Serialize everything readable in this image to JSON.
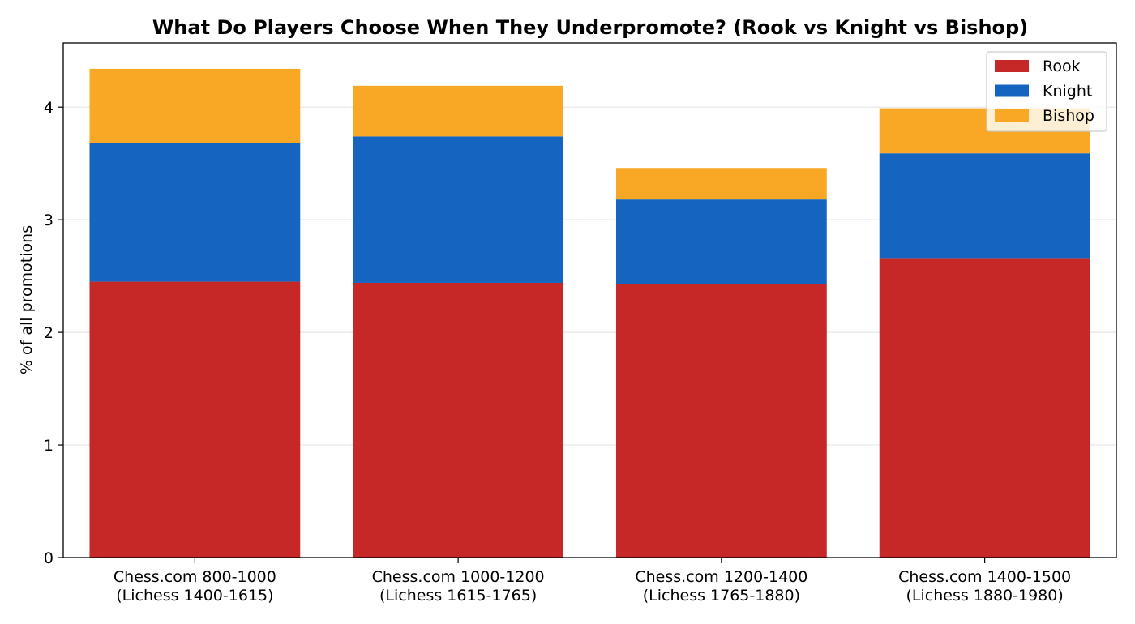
{
  "chart_data": {
    "type": "bar",
    "stacked": true,
    "title": "What Do Players Choose When They Underpromote? (Rook vs Knight vs Bishop)",
    "xlabel": "",
    "ylabel": "% of all promotions",
    "ylim": [
      0,
      4.57
    ],
    "yticks": [
      0,
      1,
      2,
      3,
      4
    ],
    "grid": "y",
    "legend": "top-right",
    "categories": [
      [
        "Chess.com 800-1000",
        "(Lichess 1400-1615)"
      ],
      [
        "Chess.com 1000-1200",
        "(Lichess 1615-1765)"
      ],
      [
        "Chess.com 1200-1400",
        "(Lichess 1765-1880)"
      ],
      [
        "Chess.com 1400-1500",
        "(Lichess 1880-1980)"
      ]
    ],
    "series": [
      {
        "name": "Rook",
        "color": "#c62828",
        "values": [
          2.45,
          2.44,
          2.43,
          2.66
        ]
      },
      {
        "name": "Knight",
        "color": "#1565c0",
        "values": [
          1.23,
          1.3,
          0.75,
          0.93
        ]
      },
      {
        "name": "Bishop",
        "color": "#f9a825",
        "values": [
          0.66,
          0.45,
          0.28,
          0.4
        ]
      }
    ]
  }
}
